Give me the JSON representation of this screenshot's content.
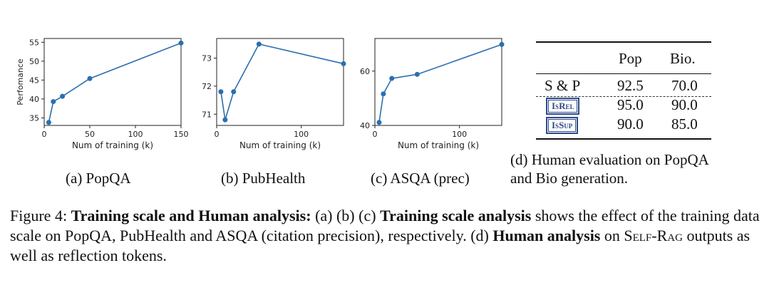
{
  "chart_data": [
    {
      "type": "line",
      "x": [
        5,
        10,
        20,
        50,
        150
      ],
      "values": [
        33.8,
        39.3,
        40.7,
        45.4,
        54.8
      ],
      "title": "",
      "xlabel": "Num of training (k)",
      "ylabel": "Perfomance",
      "xlim": [
        0,
        150
      ],
      "ylim": [
        33,
        56
      ],
      "xticks": [
        0,
        50,
        100,
        150
      ],
      "yticks": [
        35,
        40,
        45,
        50,
        55
      ],
      "grid": false,
      "color": "#2a6fb0"
    },
    {
      "type": "line",
      "x": [
        5,
        10,
        20,
        50,
        150
      ],
      "values": [
        71.8,
        70.8,
        71.8,
        73.5,
        72.8
      ],
      "title": "",
      "xlabel": "Num of training (k)",
      "ylabel": "",
      "xlim": [
        0,
        150
      ],
      "ylim": [
        70.6,
        73.7
      ],
      "xticks": [
        0,
        100
      ],
      "yticks": [
        71,
        72,
        73
      ],
      "grid": false,
      "color": "#2a6fb0"
    },
    {
      "type": "line",
      "x": [
        5,
        10,
        20,
        50,
        150
      ],
      "values": [
        41.1,
        51.6,
        57.3,
        58.8,
        69.8
      ],
      "title": "",
      "xlabel": "Num of training (k)",
      "ylabel": "",
      "xlim": [
        0,
        150
      ],
      "ylim": [
        40,
        72
      ],
      "xticks": [
        0,
        100
      ],
      "yticks": [
        40,
        60
      ],
      "grid": false,
      "color": "#2a6fb0"
    }
  ],
  "subcaptions": {
    "a": "(a) PopQA",
    "b": "(b) PubHealth",
    "c": "(c) ASQA (prec)",
    "d_line1": "(d) Human evaluation on PopQA",
    "d_line2": "and Bio generation."
  },
  "table": {
    "headers": [
      "Pop",
      "Bio."
    ],
    "rows": [
      {
        "label": "S & P",
        "values": [
          "92.5",
          "70.0"
        ]
      },
      {
        "label": "IsRel",
        "values": [
          "95.0",
          "90.0"
        ]
      },
      {
        "label": "IsSup",
        "values": [
          "90.0",
          "85.0"
        ]
      }
    ]
  },
  "figure_caption": {
    "prefix": "Figure 4: ",
    "bold1": "Training scale and Human analysis:",
    "text1": " (a) (b) (c) ",
    "bold2": "Training scale analysis",
    "text2": " shows the effect of the training data scale on PopQA, PubHealth and ASQA (citation precision), respectively.  (d) ",
    "bold3": "Human analysis",
    "text3": " on ",
    "sc": "Self-Rag",
    "text4": " outputs as well as reflection tokens."
  }
}
